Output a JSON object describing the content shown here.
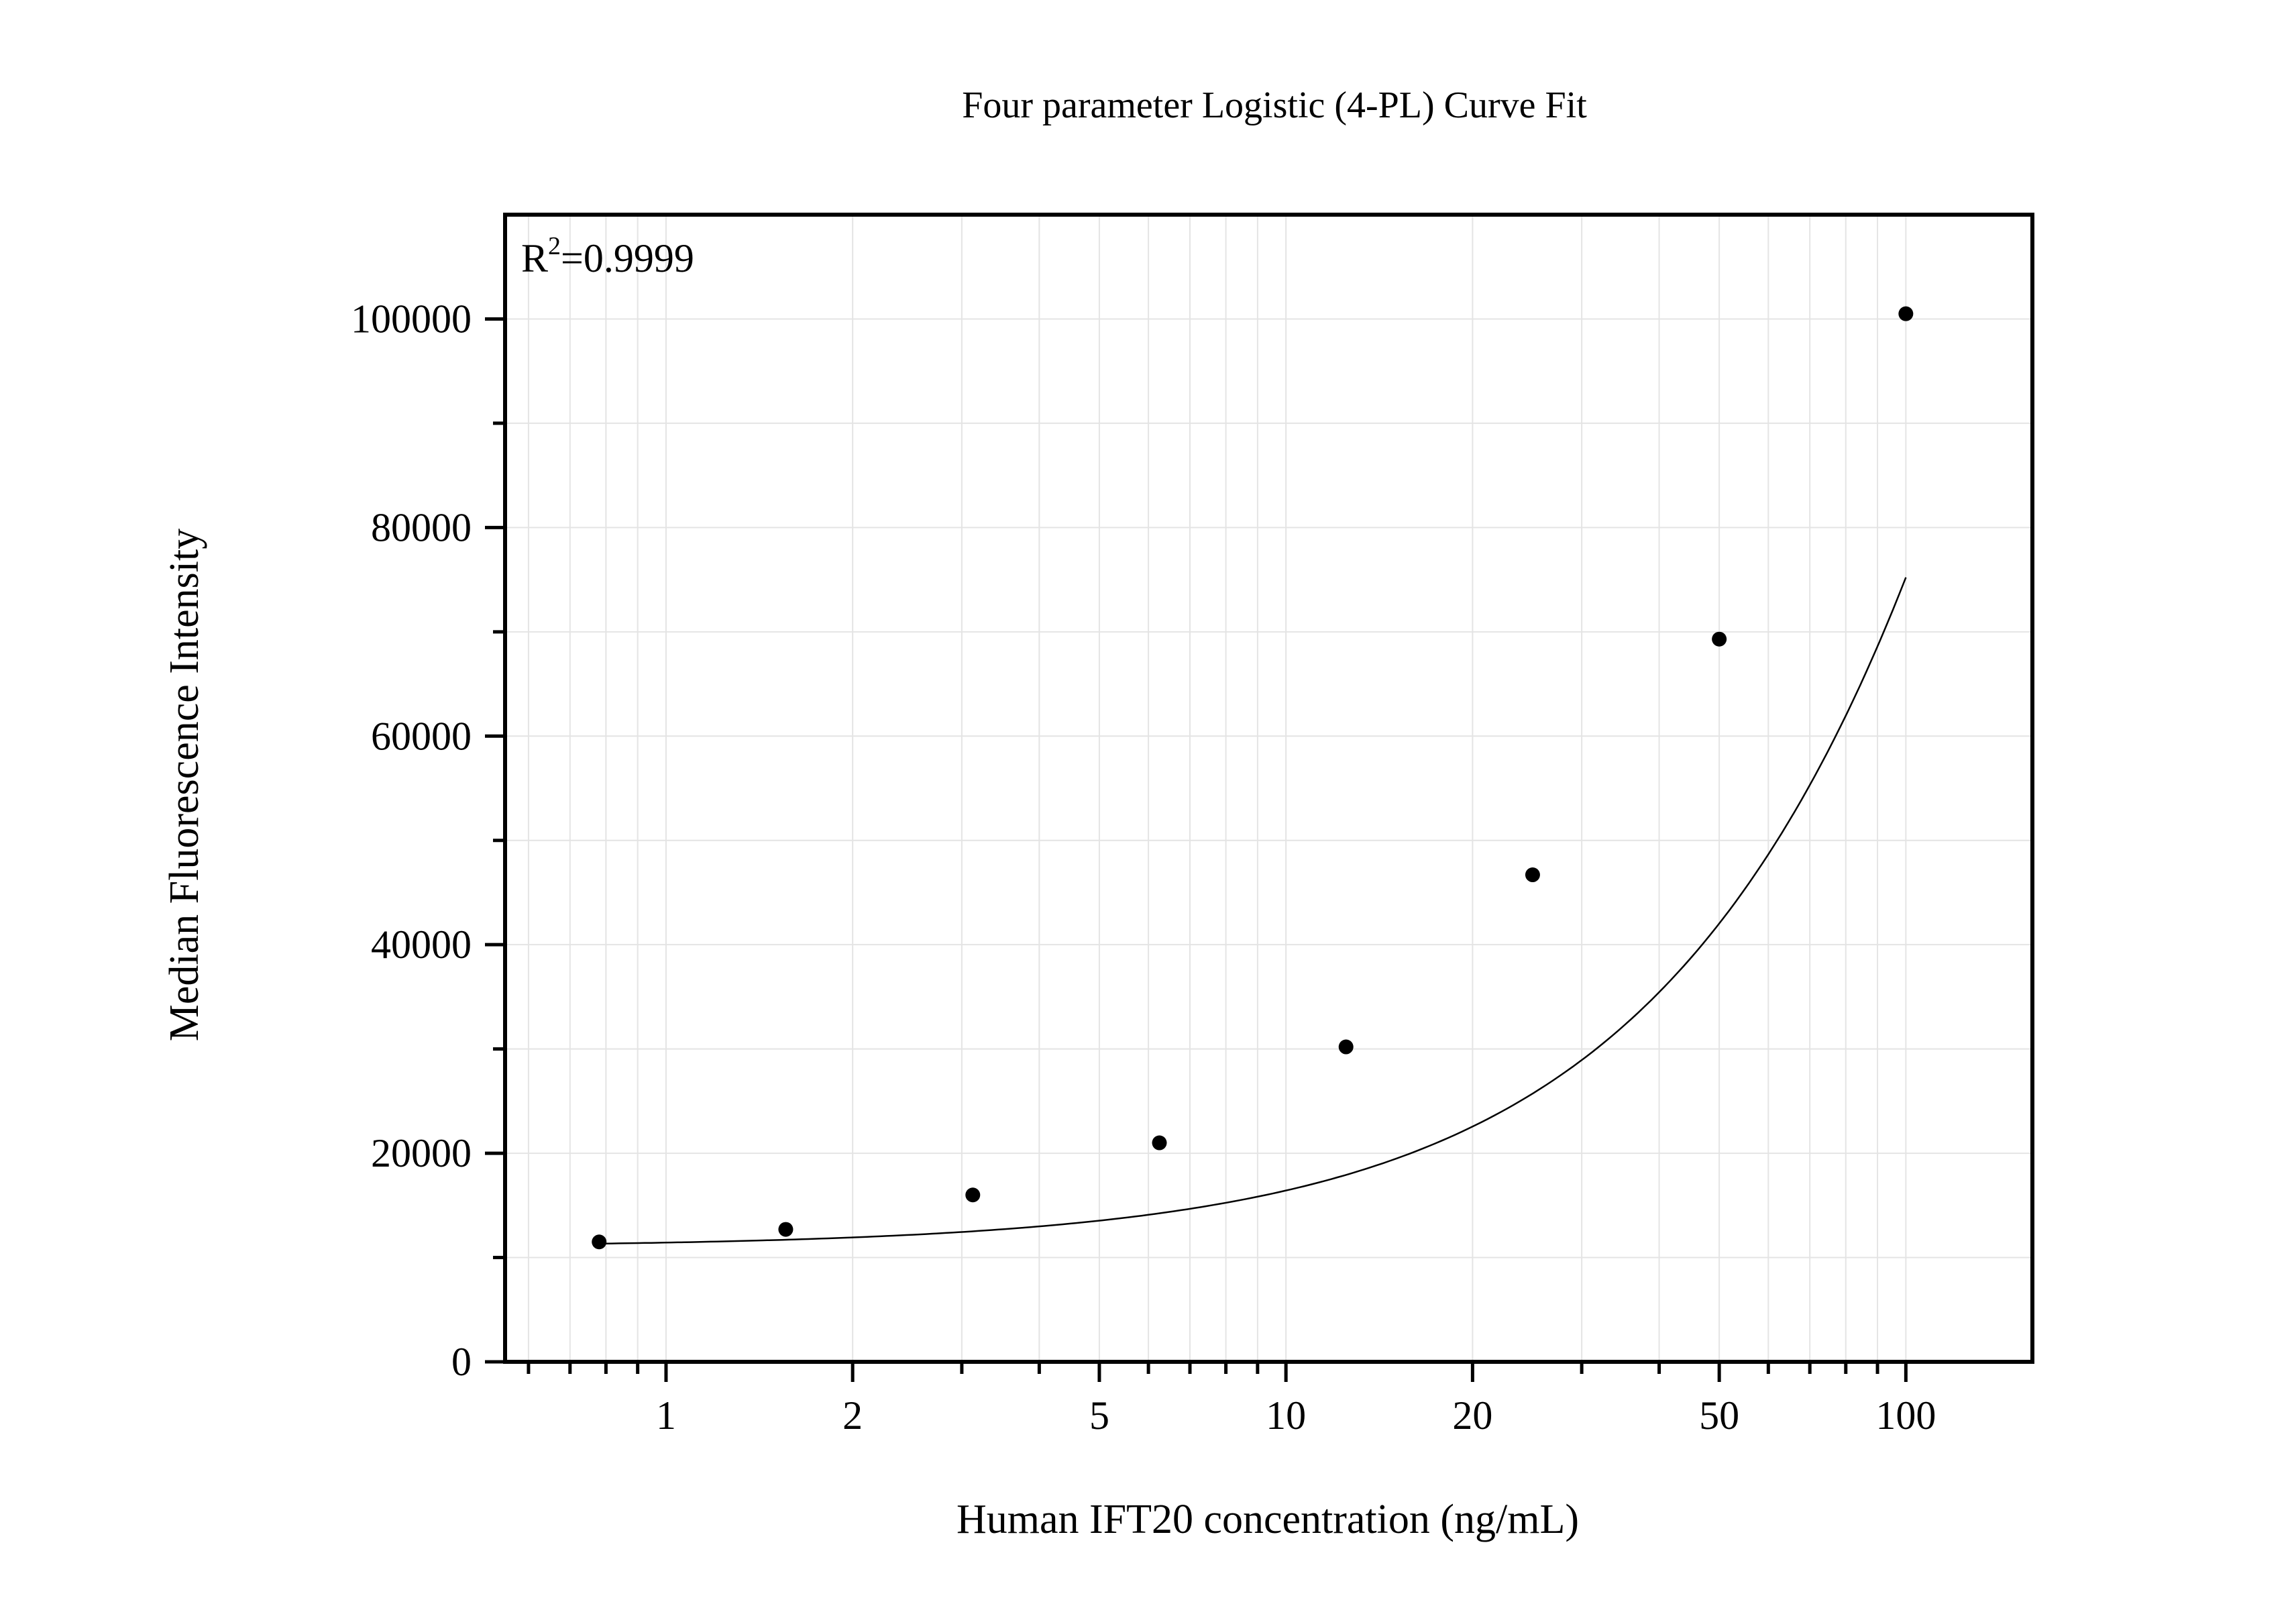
{
  "chart_data": {
    "type": "scatter",
    "title": "Four parameter Logistic (4-PL) Curve Fit",
    "xlabel": "Human IFT20 concentration (ng/mL)",
    "ylabel": "Median Fluorescence Intensity",
    "x_scale": "log",
    "xlim": [
      0.55,
      160
    ],
    "ylim": [
      0,
      110000
    ],
    "x_ticks": [
      1,
      2,
      5,
      10,
      20,
      50,
      100
    ],
    "x_tick_labels": [
      "1",
      "2",
      "5",
      "10",
      "20",
      "50",
      "100"
    ],
    "y_ticks": [
      0,
      20000,
      40000,
      60000,
      80000,
      100000
    ],
    "y_tick_labels": [
      "0",
      "20000",
      "40000",
      "60000",
      "80000",
      "100000"
    ],
    "y_minor_step": 10000,
    "grid": true,
    "annotation": {
      "base": "R",
      "sup": "2",
      "rest": "=0.9999"
    },
    "series": [
      {
        "type": "scatter",
        "x": [
          0.78,
          1.56,
          3.125,
          6.25,
          12.5,
          25,
          50,
          100
        ],
        "y": [
          11500,
          12700,
          16000,
          21000,
          30200,
          46700,
          69300,
          100500
        ]
      }
    ],
    "fit": {
      "type": "4PL",
      "bottom": 11000,
      "top": 1000000,
      "ec50": 1130,
      "hill": 1.1
    },
    "colors": {
      "points": "#000000",
      "curve": "#000000",
      "grid": "#e4e4e4",
      "frame": "#000000"
    }
  }
}
